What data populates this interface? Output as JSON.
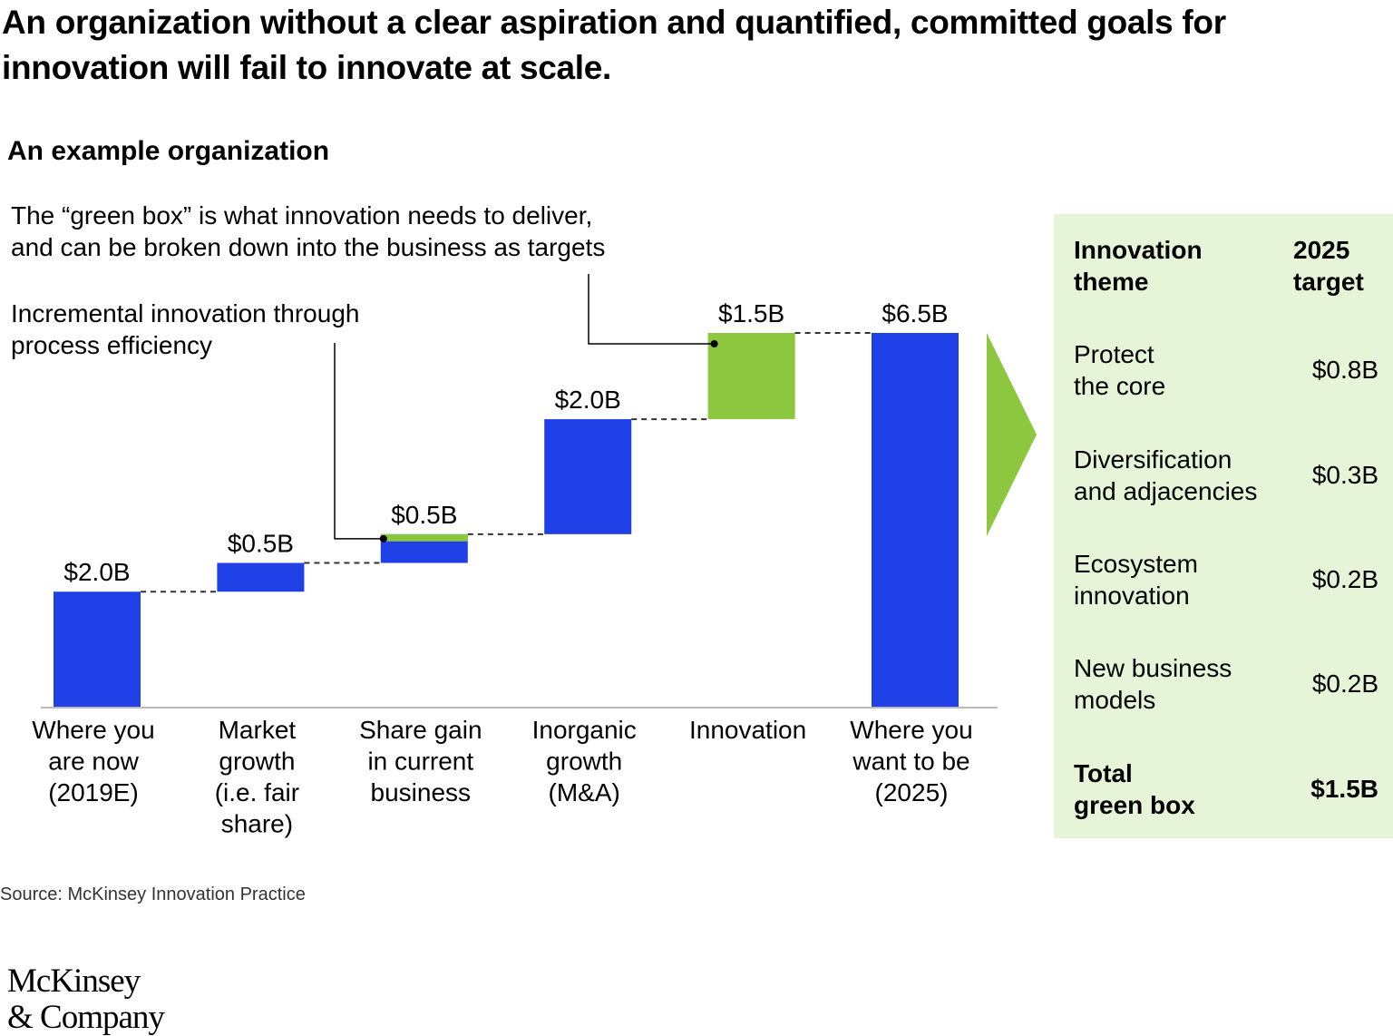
{
  "title": "An organization without a clear aspiration and quantified, committed goals for innovation will fail to innovate at scale.",
  "subtitle": "An example organization",
  "chart_data": {
    "type": "bar",
    "subtype": "waterfall",
    "categories": [
      [
        "Where you",
        "are now",
        "(2019E)"
      ],
      [
        "Market",
        "growth",
        "(i.e. fair",
        "share)"
      ],
      [
        "Share gain",
        "in current",
        "business"
      ],
      [
        "Inorganic",
        "growth",
        "(M&A)"
      ],
      [
        "Innovation"
      ],
      [
        "Where you",
        "want to be",
        "(2025)"
      ]
    ],
    "steps": [
      {
        "label": "$2.0B",
        "base": 0,
        "value": 2.0,
        "color": "#1f40e6",
        "total": true
      },
      {
        "label": "$0.5B",
        "base": 2.0,
        "value": 0.5,
        "color": "#1f40e6"
      },
      {
        "label": "$0.5B",
        "base": 2.5,
        "value": 0.5,
        "color": "#1f40e6",
        "green_top": 0.09
      },
      {
        "label": "$2.0B",
        "base": 3.0,
        "value": 2.0,
        "color": "#1f40e6"
      },
      {
        "label": "$1.5B",
        "base": 5.0,
        "value": 1.5,
        "color": "#8dc63f"
      },
      {
        "label": "$6.5B",
        "base": 0,
        "value": 6.5,
        "color": "#1f40e6",
        "total": true
      }
    ],
    "ylim": [
      0,
      6.5
    ],
    "grid": false,
    "annotations": [
      {
        "lines": [
          "The “green box” is what innovation needs to deliver,",
          "and can be broken down into the business as targets"
        ],
        "target_step": 4
      },
      {
        "lines": [
          "Incremental innovation through",
          "process efficiency"
        ],
        "target_step": 2
      }
    ],
    "colors": {
      "blue": "#1f40e6",
      "green": "#8dc63f",
      "panel": "#e6f4d8"
    }
  },
  "green_box": {
    "header": {
      "theme": [
        "Innovation",
        "theme"
      ],
      "target": [
        "2025",
        "target"
      ]
    },
    "rows": [
      {
        "theme": [
          "Protect",
          "the core"
        ],
        "value": "$0.8B"
      },
      {
        "theme": [
          "Diversification",
          "and adjacencies"
        ],
        "value": "$0.3B"
      },
      {
        "theme": [
          "Ecosystem",
          "innovation"
        ],
        "value": "$0.2B"
      },
      {
        "theme": [
          "New business",
          "models"
        ],
        "value": "$0.2B"
      }
    ],
    "total": {
      "theme": [
        "Total",
        "green box"
      ],
      "value": "$1.5B"
    }
  },
  "source": "Source: McKinsey Innovation Practice",
  "logo": {
    "line1": "McKinsey",
    "line2": "& Company"
  }
}
